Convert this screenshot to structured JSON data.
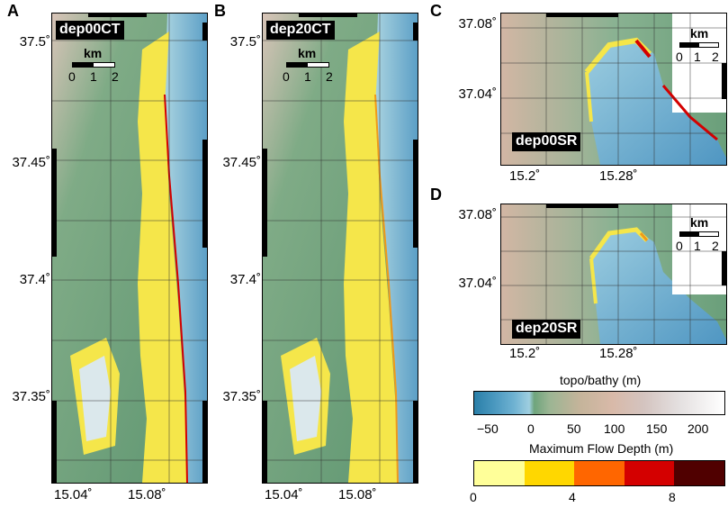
{
  "panels": {
    "A": {
      "letter": "A",
      "label": "dep00CT"
    },
    "B": {
      "letter": "B",
      "label": "dep20CT"
    },
    "C": {
      "letter": "C",
      "label": "dep00SR"
    },
    "D": {
      "letter": "D",
      "label": "dep20SR"
    }
  },
  "tall_lat_ticks": [
    "37.5˚",
    "37.45˚",
    "37.4˚",
    "37.35˚"
  ],
  "tall_lon_ticks": [
    "15.04˚",
    "15.08˚"
  ],
  "small_lat_ticks": [
    "37.08˚",
    "37.04˚"
  ],
  "small_lon_ticks": [
    "15.2˚",
    "15.28˚"
  ],
  "scalebar": {
    "unit": "km",
    "ticks": [
      "0",
      "1",
      "2"
    ]
  },
  "colorbars": {
    "topo": {
      "title": "topo/bathy (m)",
      "ticks": [
        "−50",
        "0",
        "50",
        "100",
        "150",
        "200"
      ]
    },
    "flow": {
      "title": "Maximum Flow Depth (m)",
      "ticks": [
        "0",
        "4",
        "8"
      ],
      "colors": [
        "#ffff99",
        "#ffd700",
        "#ff6600",
        "#d40000",
        "#500000"
      ]
    }
  },
  "colors": {
    "sea": "#6fb0d0",
    "land_low": "#6fa27a",
    "land_high": "#d4b8a8",
    "inundation": "#f5e64a",
    "max_flow": "#d40000"
  }
}
